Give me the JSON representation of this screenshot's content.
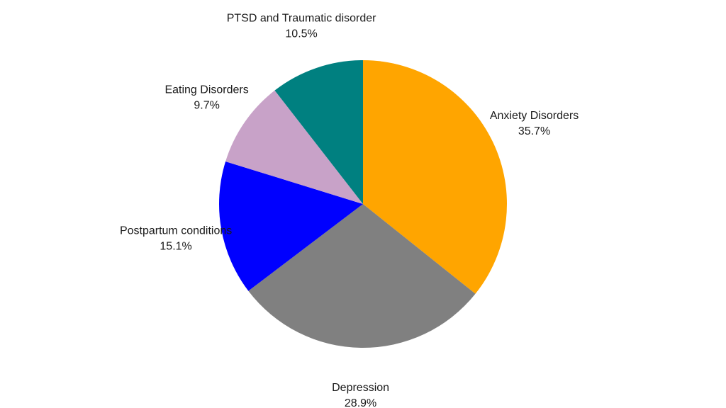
{
  "chart_data": {
    "type": "pie",
    "title": "",
    "start_angle_deg": 0,
    "direction": "clockwise",
    "slices": [
      {
        "label": "Anxiety Disorders",
        "value": 35.7,
        "value_text": "35.7%",
        "color": "#FFA500"
      },
      {
        "label": "Depression",
        "value": 28.9,
        "value_text": "28.9%",
        "color": "#808080"
      },
      {
        "label": "Postpartum conditions",
        "value": 15.1,
        "value_text": "15.1%",
        "color": "#0000FF"
      },
      {
        "label": "Eating Disorders",
        "value": 9.7,
        "value_text": "9.7%",
        "color": "#C8A2C8"
      },
      {
        "label": "PTSD and Traumatic disorder",
        "value": 10.5,
        "value_text": "10.5%",
        "color": "#008080"
      }
    ],
    "legend": "none"
  }
}
